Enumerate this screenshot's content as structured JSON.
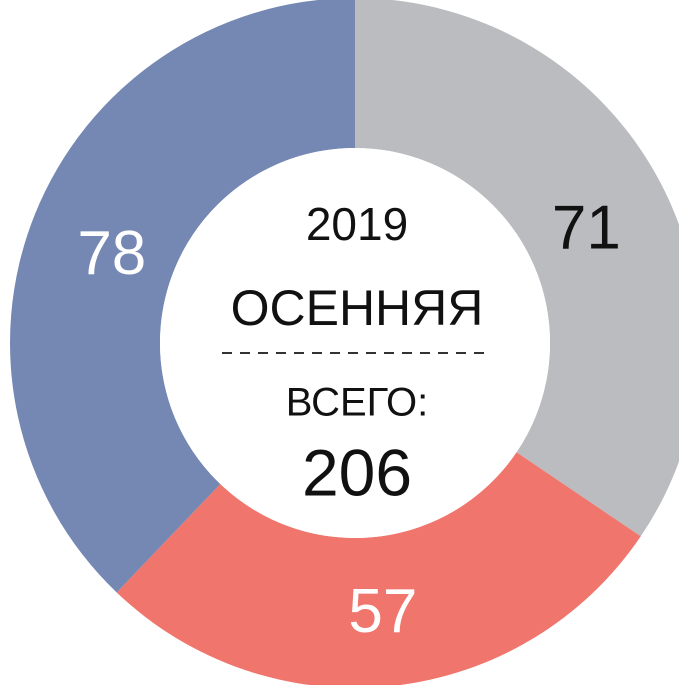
{
  "chart_data": {
    "type": "donut",
    "title": "2019",
    "subtitle": "ОСЕННЯЯ",
    "total_label": "ВСЕГО:",
    "total": 206,
    "values": [
      71,
      57,
      78
    ],
    "colors": [
      "#bbbcc0",
      "#f0756c",
      "#7488b3"
    ],
    "label_colors": [
      "#111111",
      "#ffffff",
      "#ffffff"
    ]
  }
}
